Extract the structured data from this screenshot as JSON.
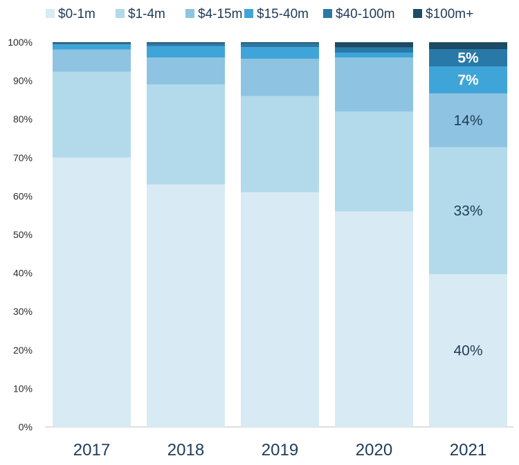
{
  "chart_data": {
    "type": "bar",
    "stacked": true,
    "categories": [
      "2017",
      "2018",
      "2019",
      "2020",
      "2021"
    ],
    "ylim": [
      0,
      100
    ],
    "y_ticks": [
      "0%",
      "10%",
      "20%",
      "30%",
      "40%",
      "50%",
      "60%",
      "70%",
      "80%",
      "90%",
      "100%"
    ],
    "legend_position": "top",
    "grid": false,
    "series": [
      {
        "name": "$0-1m",
        "color": "#d8ebf4",
        "values": [
          70.0,
          63.0,
          61.0,
          56.0,
          39.7
        ]
      },
      {
        "name": "$1-4m",
        "color": "#b2daeb",
        "values": [
          22.3,
          26.0,
          25.0,
          26.0,
          33.0
        ]
      },
      {
        "name": "$4-15m",
        "color": "#8ec4e2",
        "values": [
          5.8,
          7.0,
          9.7,
          14.0,
          14.0
        ]
      },
      {
        "name": "$15-40m",
        "color": "#3fa5d8",
        "values": [
          1.3,
          3.0,
          3.0,
          1.3,
          7.0
        ]
      },
      {
        "name": "$40-100m",
        "color": "#2979a8",
        "values": [
          0.3,
          0.7,
          1.0,
          1.3,
          4.5
        ]
      },
      {
        "name": "$100m+",
        "color": "#1b4b65",
        "values": [
          0.3,
          0.3,
          0.3,
          1.4,
          1.8
        ]
      }
    ],
    "annotations": [
      {
        "category": "2021",
        "series": "$0-1m",
        "text": "40%",
        "color": "#1f3b57"
      },
      {
        "category": "2021",
        "series": "$1-4m",
        "text": "33%",
        "color": "#1f3b57"
      },
      {
        "category": "2021",
        "series": "$4-15m",
        "text": "14%",
        "color": "#1f3b57"
      },
      {
        "category": "2021",
        "series": "$15-40m",
        "text": "7%",
        "color": "#ffffff"
      },
      {
        "category": "2021",
        "series": "$40-100m",
        "text": "5%",
        "color": "#ffffff"
      }
    ]
  }
}
